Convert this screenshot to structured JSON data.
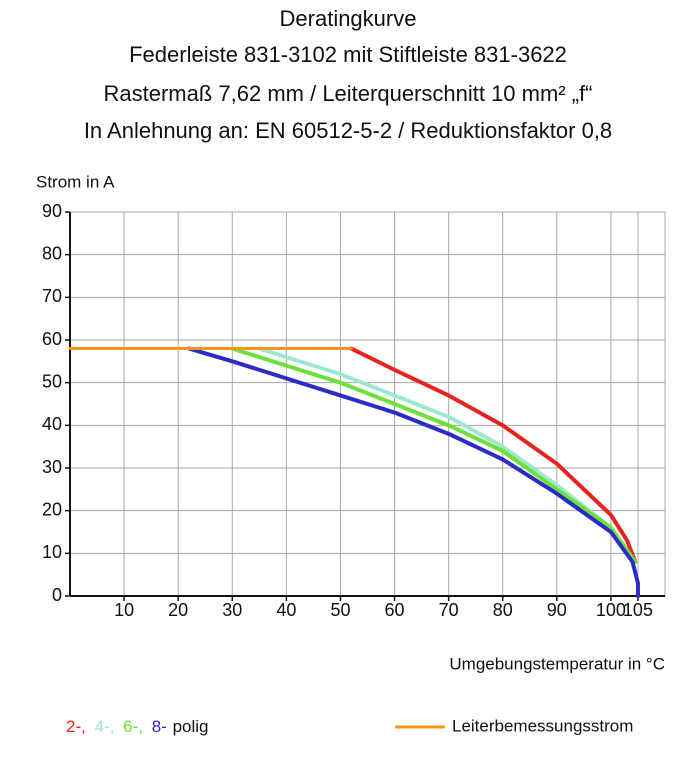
{
  "chart_data": {
    "type": "line",
    "title": "Deratingkurve",
    "subtitles": [
      "Federleiste 831-3102 mit Stiftleiste 831-3622",
      "Rastermaß 7,62 mm / Leiterquerschnitt 10 mm² „f“",
      "In Anlehnung an: EN 60512-5-2 / Reduktionsfaktor 0,8"
    ],
    "y_label": "Strom in A",
    "x_label": "Umgebungstemperatur in °C",
    "legend_suffix": "polig",
    "xlim": [
      0,
      110
    ],
    "ylim": [
      0,
      90
    ],
    "xticks": [
      10,
      20,
      30,
      40,
      50,
      60,
      70,
      80,
      90,
      100,
      105
    ],
    "yticks": [
      0,
      10,
      20,
      30,
      40,
      50,
      60,
      70,
      80,
      90
    ],
    "grid": true,
    "series": [
      {
        "name": "2-,",
        "color": "#e8231e",
        "x": [
          52,
          60,
          70,
          80,
          90,
          100,
          103,
          104.5
        ],
        "values": [
          58,
          53,
          47,
          40,
          31,
          19,
          13,
          8
        ]
      },
      {
        "name": "4-,",
        "color": "#9ee8d0",
        "x": [
          35,
          50,
          60,
          70,
          80,
          90,
          100,
          104.5
        ],
        "values": [
          58,
          52,
          47,
          42,
          35,
          26,
          16,
          8
        ]
      },
      {
        "name": "6-,",
        "color": "#6ee03a",
        "x": [
          30,
          40,
          50,
          60,
          70,
          80,
          90,
          100,
          104.5
        ],
        "values": [
          58,
          54,
          50,
          45,
          40,
          34,
          25,
          16,
          8
        ]
      },
      {
        "name": "8-",
        "color": "#2b2bc8",
        "x": [
          22,
          30,
          40,
          50,
          60,
          70,
          80,
          90,
          100,
          104,
          105,
          105
        ],
        "values": [
          58,
          55,
          51,
          47,
          43,
          38,
          32,
          24,
          15,
          8,
          3,
          0
        ]
      },
      {
        "name": "Leiterbemessungsstrom",
        "color": "#f7941d",
        "x": [
          0,
          52
        ],
        "values": [
          58,
          58
        ]
      }
    ]
  }
}
